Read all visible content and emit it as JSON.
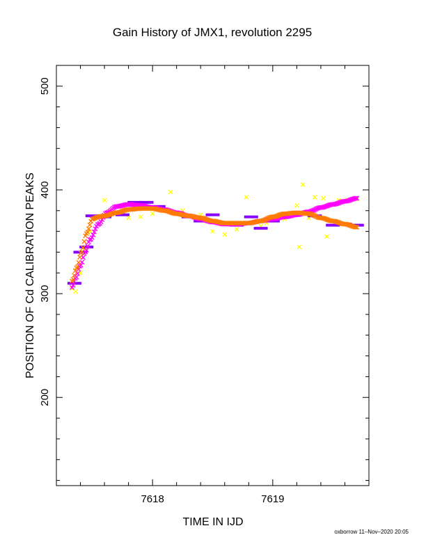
{
  "chart_data": {
    "type": "scatter",
    "title": "Gain History of JMX1, revolution 2295",
    "xlabel": "TIME IN IJD",
    "ylabel": "POSITION OF Cd CALIBRATION PEAKS",
    "xlim": [
      7617.2,
      7619.8
    ],
    "ylim": [
      115,
      520
    ],
    "xticks": [
      7618,
      7619
    ],
    "yticks": [
      200,
      300,
      400,
      500
    ],
    "grid": false,
    "series": [
      {
        "color": "#ffff00",
        "marker": "x",
        "x": [
          7617.33,
          7617.36,
          7617.4,
          7617.44,
          7617.48,
          7617.52,
          7617.55,
          7617.6,
          7617.65,
          7617.72,
          7617.8,
          7617.9,
          7618.0,
          7618.12,
          7618.15,
          7618.25,
          7618.4,
          7618.5,
          7618.6,
          7618.7,
          7618.78,
          7618.9,
          7618.95,
          7619.1,
          7619.2,
          7619.22,
          7619.25,
          7619.3,
          7619.35,
          7619.42,
          7619.45,
          7619.55,
          7619.62,
          7619.7
        ],
        "y": [
          305,
          302,
          320,
          345,
          360,
          373,
          375,
          390,
          380,
          378,
          373,
          374,
          377,
          380,
          398,
          380,
          376,
          360,
          357,
          362,
          393,
          365,
          368,
          372,
          385,
          345,
          405,
          373,
          393,
          392,
          355,
          390,
          390,
          391
        ]
      },
      {
        "color": "#8800ff",
        "marker": "-",
        "x": [
          7617.35,
          7617.4,
          7617.45,
          7617.5,
          7617.6,
          7617.75,
          7617.85,
          7617.95,
          7618.05,
          7618.2,
          7618.3,
          7618.4,
          7618.5,
          7618.6,
          7618.7,
          7618.82,
          7618.9,
          7619.0,
          7619.1,
          7619.2,
          7619.35,
          7619.5,
          7619.6,
          7619.7
        ],
        "y": [
          310,
          340,
          345,
          375,
          374,
          376,
          388,
          388,
          384,
          378,
          374,
          370,
          376,
          368,
          366,
          374,
          363,
          370,
          376,
          378,
          375,
          366,
          367,
          366
        ]
      },
      {
        "color": "#ff00ff",
        "marker": "x",
        "x": [
          7617.33,
          7617.36,
          7617.4,
          7617.44,
          7617.48,
          7617.55,
          7617.62,
          7617.7,
          7617.8,
          7617.9,
          7618.0,
          7618.1,
          7618.2,
          7618.3,
          7618.4,
          7618.5,
          7618.6,
          7618.7,
          7618.8,
          7618.9,
          7619.0,
          7619.1,
          7619.2,
          7619.3,
          7619.4,
          7619.5,
          7619.6,
          7619.7
        ],
        "y": [
          306,
          315,
          327,
          340,
          352,
          367,
          378,
          384,
          386,
          385,
          383,
          381,
          378,
          375,
          372,
          369,
          367,
          367,
          368,
          370,
          372,
          374,
          376,
          379,
          383,
          386,
          389,
          392
        ]
      },
      {
        "color": "#ff7a00",
        "marker": "x",
        "x": [
          7617.33,
          7617.37,
          7617.41,
          7617.45,
          7617.5,
          7617.55,
          7617.6,
          7617.7,
          7617.8,
          7617.9,
          7618.0,
          7618.1,
          7618.2,
          7618.3,
          7618.4,
          7618.5,
          7618.6,
          7618.7,
          7618.8,
          7618.9,
          7619.0,
          7619.1,
          7619.2,
          7619.3,
          7619.4,
          7619.5,
          7619.6,
          7619.7
        ],
        "y": [
          312,
          325,
          340,
          358,
          372,
          374,
          375,
          378,
          381,
          382,
          382,
          380,
          377,
          375,
          373,
          370,
          368,
          368,
          368,
          370,
          374,
          377,
          378,
          377,
          373,
          370,
          367,
          364
        ]
      }
    ]
  },
  "footer": "oxborrow 11–Nov–2020 20:05"
}
